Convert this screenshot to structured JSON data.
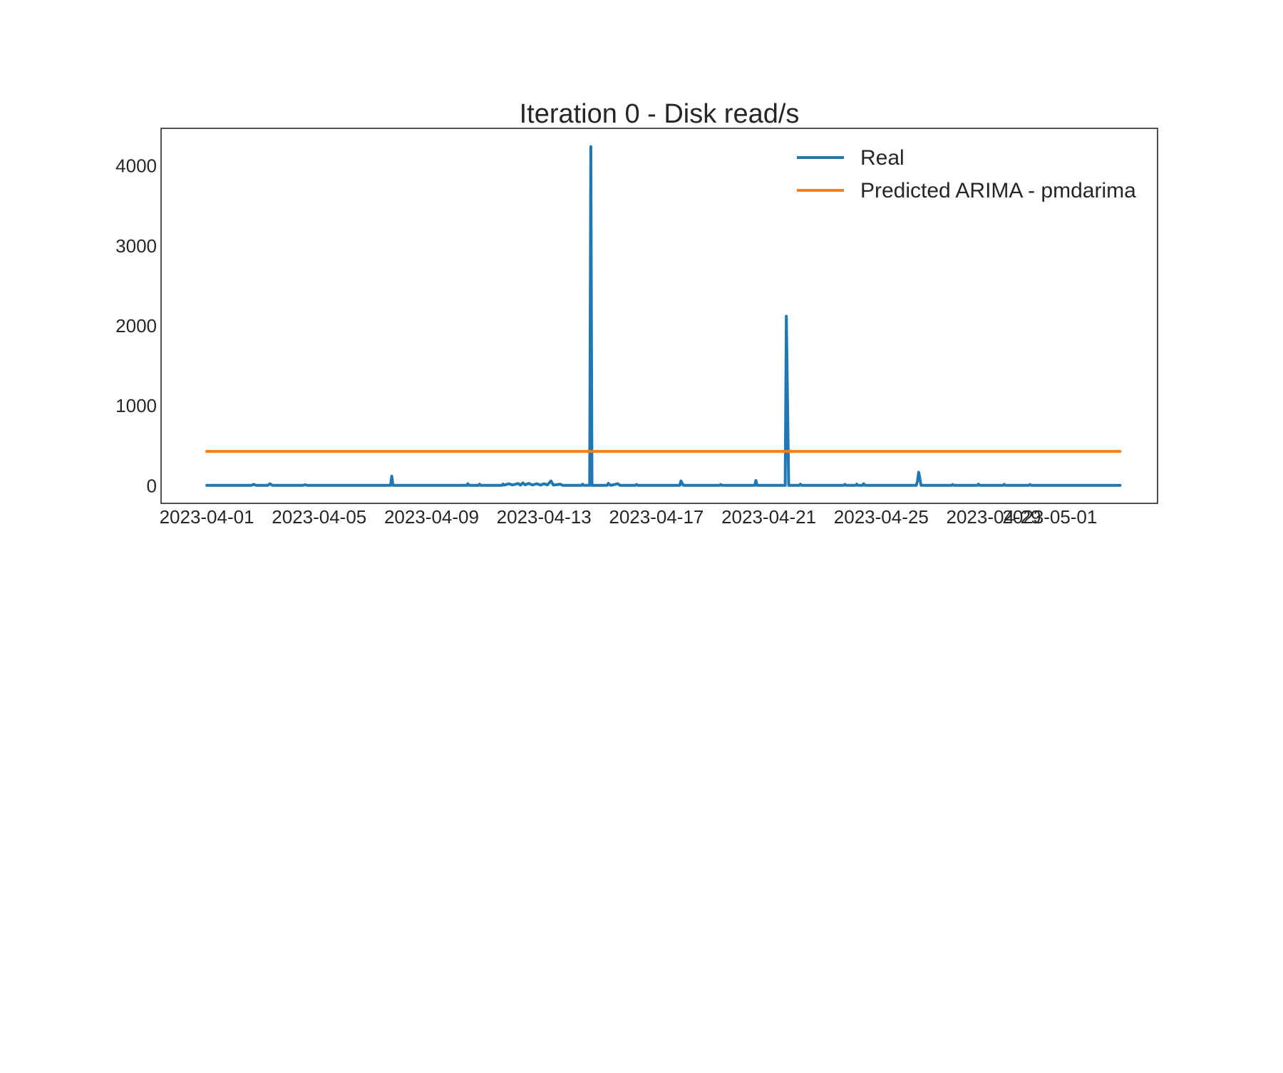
{
  "chart_data": {
    "type": "line",
    "title": "Iteration 0 - Disk read/s",
    "xlabel": "",
    "ylabel": "",
    "x_axis_type": "date",
    "xlim": [
      "2023-03-30T09:00",
      "2023-05-04T20:00"
    ],
    "ylim": [
      -220,
      4470
    ],
    "x_ticks": [
      "2023-04-01",
      "2023-04-05",
      "2023-04-09",
      "2023-04-13",
      "2023-04-17",
      "2023-04-21",
      "2023-04-25",
      "2023-04-29",
      "2023-05-01"
    ],
    "y_ticks": [
      0,
      1000,
      2000,
      3000,
      4000
    ],
    "grid": false,
    "legend_position": "top-right",
    "series": [
      {
        "name": "Real",
        "color": "#1f77b4",
        "points": [
          [
            "2023-04-01T00:00",
            5
          ],
          [
            "2023-04-02T14:00",
            5
          ],
          [
            "2023-04-02T16:00",
            18
          ],
          [
            "2023-04-02T18:00",
            5
          ],
          [
            "2023-04-03T04:00",
            5
          ],
          [
            "2023-04-03T06:00",
            25
          ],
          [
            "2023-04-03T08:00",
            5
          ],
          [
            "2023-04-04T10:00",
            5
          ],
          [
            "2023-04-04T12:00",
            12
          ],
          [
            "2023-04-04T14:00",
            5
          ],
          [
            "2023-04-07T13:00",
            5
          ],
          [
            "2023-04-07T14:00",
            120
          ],
          [
            "2023-04-07T15:00",
            5
          ],
          [
            "2023-04-10T06:00",
            5
          ],
          [
            "2023-04-10T07:00",
            25
          ],
          [
            "2023-04-10T08:00",
            5
          ],
          [
            "2023-04-10T16:00",
            5
          ],
          [
            "2023-04-10T17:00",
            20
          ],
          [
            "2023-04-10T18:00",
            5
          ],
          [
            "2023-04-11T12:00",
            5
          ],
          [
            "2023-04-11T13:00",
            22
          ],
          [
            "2023-04-11T14:00",
            8
          ],
          [
            "2023-04-11T18:00",
            25
          ],
          [
            "2023-04-11T21:00",
            10
          ],
          [
            "2023-04-12T02:00",
            28
          ],
          [
            "2023-04-12T04:00",
            8
          ],
          [
            "2023-04-12T06:00",
            35
          ],
          [
            "2023-04-12T08:00",
            12
          ],
          [
            "2023-04-12T11:00",
            30
          ],
          [
            "2023-04-12T14:00",
            10
          ],
          [
            "2023-04-12T18:00",
            25
          ],
          [
            "2023-04-12T21:00",
            8
          ],
          [
            "2023-04-13T00:00",
            25
          ],
          [
            "2023-04-13T03:00",
            10
          ],
          [
            "2023-04-13T06:00",
            60
          ],
          [
            "2023-04-13T08:00",
            8
          ],
          [
            "2023-04-13T14:00",
            20
          ],
          [
            "2023-04-13T16:00",
            5
          ],
          [
            "2023-04-14T08:00",
            5
          ],
          [
            "2023-04-14T09:00",
            20
          ],
          [
            "2023-04-14T10:00",
            5
          ],
          [
            "2023-04-14T15:00",
            5
          ],
          [
            "2023-04-14T16:00",
            4240
          ],
          [
            "2023-04-14T17:00",
            5
          ],
          [
            "2023-04-15T06:00",
            5
          ],
          [
            "2023-04-15T07:00",
            30
          ],
          [
            "2023-04-15T09:00",
            5
          ],
          [
            "2023-04-15T15:00",
            25
          ],
          [
            "2023-04-15T17:00",
            5
          ],
          [
            "2023-04-16T06:00",
            5
          ],
          [
            "2023-04-16T07:00",
            15
          ],
          [
            "2023-04-16T08:00",
            5
          ],
          [
            "2023-04-17T20:00",
            5
          ],
          [
            "2023-04-17T21:00",
            60
          ],
          [
            "2023-04-17T23:00",
            5
          ],
          [
            "2023-04-19T06:00",
            5
          ],
          [
            "2023-04-19T07:00",
            15
          ],
          [
            "2023-04-19T08:00",
            5
          ],
          [
            "2023-04-20T12:00",
            5
          ],
          [
            "2023-04-20T13:00",
            65
          ],
          [
            "2023-04-20T14:00",
            5
          ],
          [
            "2023-04-21T14:00",
            5
          ],
          [
            "2023-04-21T15:00",
            2120
          ],
          [
            "2023-04-21T17:00",
            5
          ],
          [
            "2023-04-22T02:00",
            5
          ],
          [
            "2023-04-22T03:00",
            20
          ],
          [
            "2023-04-22T04:00",
            5
          ],
          [
            "2023-04-23T16:00",
            5
          ],
          [
            "2023-04-23T17:00",
            18
          ],
          [
            "2023-04-23T18:00",
            5
          ],
          [
            "2023-04-24T02:00",
            5
          ],
          [
            "2023-04-24T03:00",
            20
          ],
          [
            "2023-04-24T04:00",
            5
          ],
          [
            "2023-04-24T08:00",
            5
          ],
          [
            "2023-04-24T09:00",
            25
          ],
          [
            "2023-04-24T10:00",
            5
          ],
          [
            "2023-04-26T06:00",
            5
          ],
          [
            "2023-04-26T07:00",
            60
          ],
          [
            "2023-04-26T08:00",
            170
          ],
          [
            "2023-04-26T10:00",
            5
          ],
          [
            "2023-04-27T12:00",
            5
          ],
          [
            "2023-04-27T13:00",
            15
          ],
          [
            "2023-04-27T14:00",
            5
          ],
          [
            "2023-04-28T10:00",
            5
          ],
          [
            "2023-04-28T11:00",
            20
          ],
          [
            "2023-04-28T12:00",
            5
          ],
          [
            "2023-04-29T08:00",
            5
          ],
          [
            "2023-04-29T09:00",
            18
          ],
          [
            "2023-04-29T10:00",
            5
          ],
          [
            "2023-04-30T06:00",
            5
          ],
          [
            "2023-04-30T07:00",
            15
          ],
          [
            "2023-04-30T08:00",
            5
          ],
          [
            "2023-05-03T12:00",
            5
          ]
        ]
      },
      {
        "name": "Predicted ARIMA - pmdarima",
        "color": "#ff7f0e",
        "points": [
          [
            "2023-04-01T00:00",
            430
          ],
          [
            "2023-05-03T12:00",
            430
          ]
        ]
      }
    ]
  }
}
